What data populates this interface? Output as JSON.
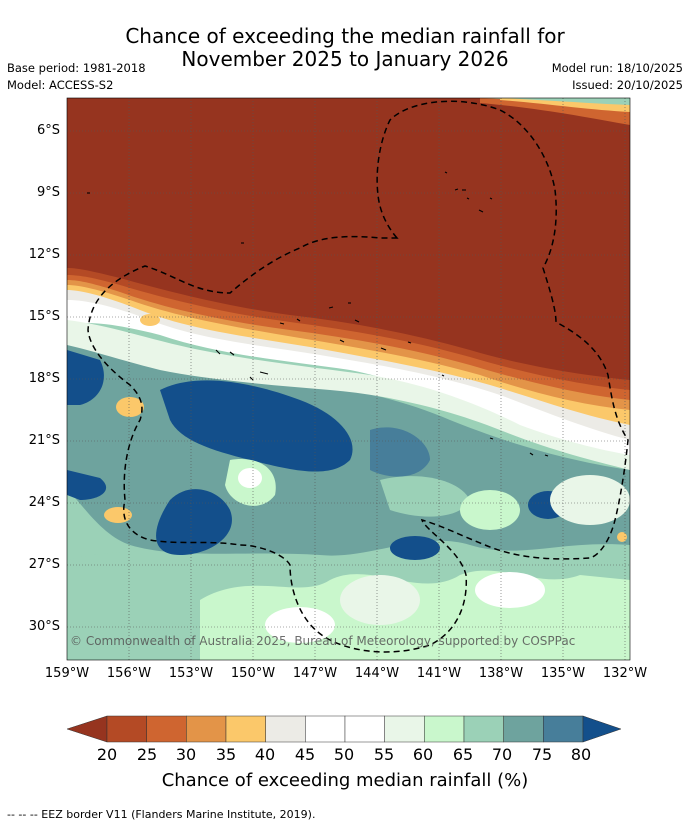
{
  "title": {
    "line1": "Chance of exceeding the median rainfall for",
    "line2": "November 2025 to January 2026"
  },
  "meta": {
    "base_period": "Base period: 1981-2018",
    "model": "Model: ACCESS-S2",
    "model_run": "Model run: 18/10/2025",
    "issued": "Issued: 20/10/2025"
  },
  "map": {
    "lat_labels": [
      "6°S",
      "9°S",
      "12°S",
      "15°S",
      "18°S",
      "21°S",
      "24°S",
      "27°S",
      "30°S"
    ],
    "lon_labels": [
      "159°W",
      "156°W",
      "153°W",
      "150°W",
      "147°W",
      "144°W",
      "141°W",
      "138°W",
      "135°W",
      "132°W"
    ],
    "copyright": "© Commonwealth of Australia 2025, Bureau of Meteorology, supported by COSPPac"
  },
  "colorbar": {
    "title": "Chance of exceeding median rainfall (%)",
    "labels": [
      "20",
      "25",
      "30",
      "35",
      "40",
      "45",
      "50",
      "55",
      "60",
      "65",
      "70",
      "75",
      "80"
    ],
    "colors": {
      "below20": "#96341f",
      "20-25": "#b44a25",
      "25-30": "#cf6530",
      "30-35": "#e39448",
      "35-40": "#fbc86a",
      "40-45": "#ecebe6",
      "45-50": "#ffffff",
      "50-55": "#ffffff",
      "55-60": "#e9f6e8",
      "60-65": "#c9f7cc",
      "65-70": "#9bd1b7",
      "70-75": "#6ea39e",
      "75-80": "#477e9a",
      "above80": "#134f8b"
    }
  },
  "footer": "--  --  -- EEZ border V11 (Flanders Marine Institute, 2019)."
}
